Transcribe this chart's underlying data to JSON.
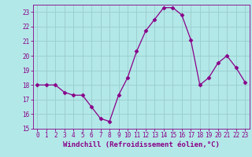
{
  "x": [
    0,
    1,
    2,
    3,
    4,
    5,
    6,
    7,
    8,
    9,
    10,
    11,
    12,
    13,
    14,
    15,
    16,
    17,
    18,
    19,
    20,
    21,
    22,
    23
  ],
  "y": [
    18.0,
    18.0,
    18.0,
    17.5,
    17.3,
    17.3,
    16.5,
    15.7,
    15.5,
    17.3,
    18.5,
    20.3,
    21.7,
    22.5,
    23.3,
    23.3,
    22.8,
    21.1,
    18.0,
    18.5,
    19.5,
    20.0,
    19.2,
    18.2
  ],
  "line_color": "#880088",
  "marker": "D",
  "marker_size": 2.5,
  "bg_color": "#b3e8e8",
  "grid_color": "#99cccc",
  "xlabel": "Windchill (Refroidissement éolien,°C)",
  "ylim": [
    15,
    23.5
  ],
  "xlim": [
    -0.5,
    23.5
  ],
  "yticks": [
    15,
    16,
    17,
    18,
    19,
    20,
    21,
    22,
    23
  ],
  "xticks": [
    0,
    1,
    2,
    3,
    4,
    5,
    6,
    7,
    8,
    9,
    10,
    11,
    12,
    13,
    14,
    15,
    16,
    17,
    18,
    19,
    20,
    21,
    22,
    23
  ],
  "label_color": "#880088",
  "tick_fontsize": 5.5,
  "xlabel_fontsize": 6.5
}
